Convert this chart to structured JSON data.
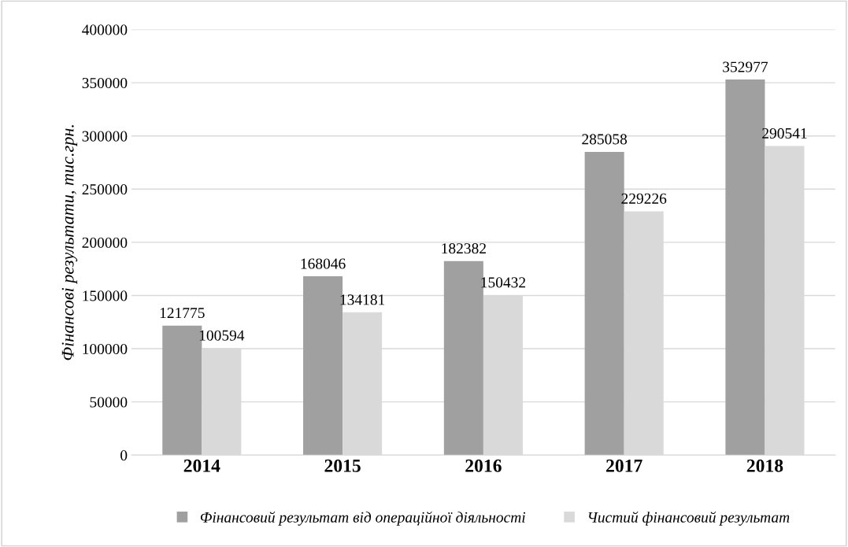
{
  "chart_data": {
    "type": "bar",
    "ylabel": "Фінансові результати, тис.грн.",
    "categories": [
      "2014",
      "2015",
      "2016",
      "2017",
      "2018"
    ],
    "series": [
      {
        "name": "Фінансовий результат від операційної діяльності",
        "color": "#a0a0a0",
        "values": [
          121775,
          168046,
          182382,
          285058,
          352977
        ]
      },
      {
        "name": "Чистий фінансовий результат",
        "color": "#d9d9d9",
        "values": [
          100594,
          134181,
          150432,
          229226,
          290541
        ]
      }
    ],
    "ylim": [
      0,
      400000
    ],
    "yticks": [
      0,
      50000,
      100000,
      150000,
      200000,
      250000,
      300000,
      350000,
      400000
    ],
    "grid": "y",
    "legend": "bottom",
    "data_labels": true
  }
}
